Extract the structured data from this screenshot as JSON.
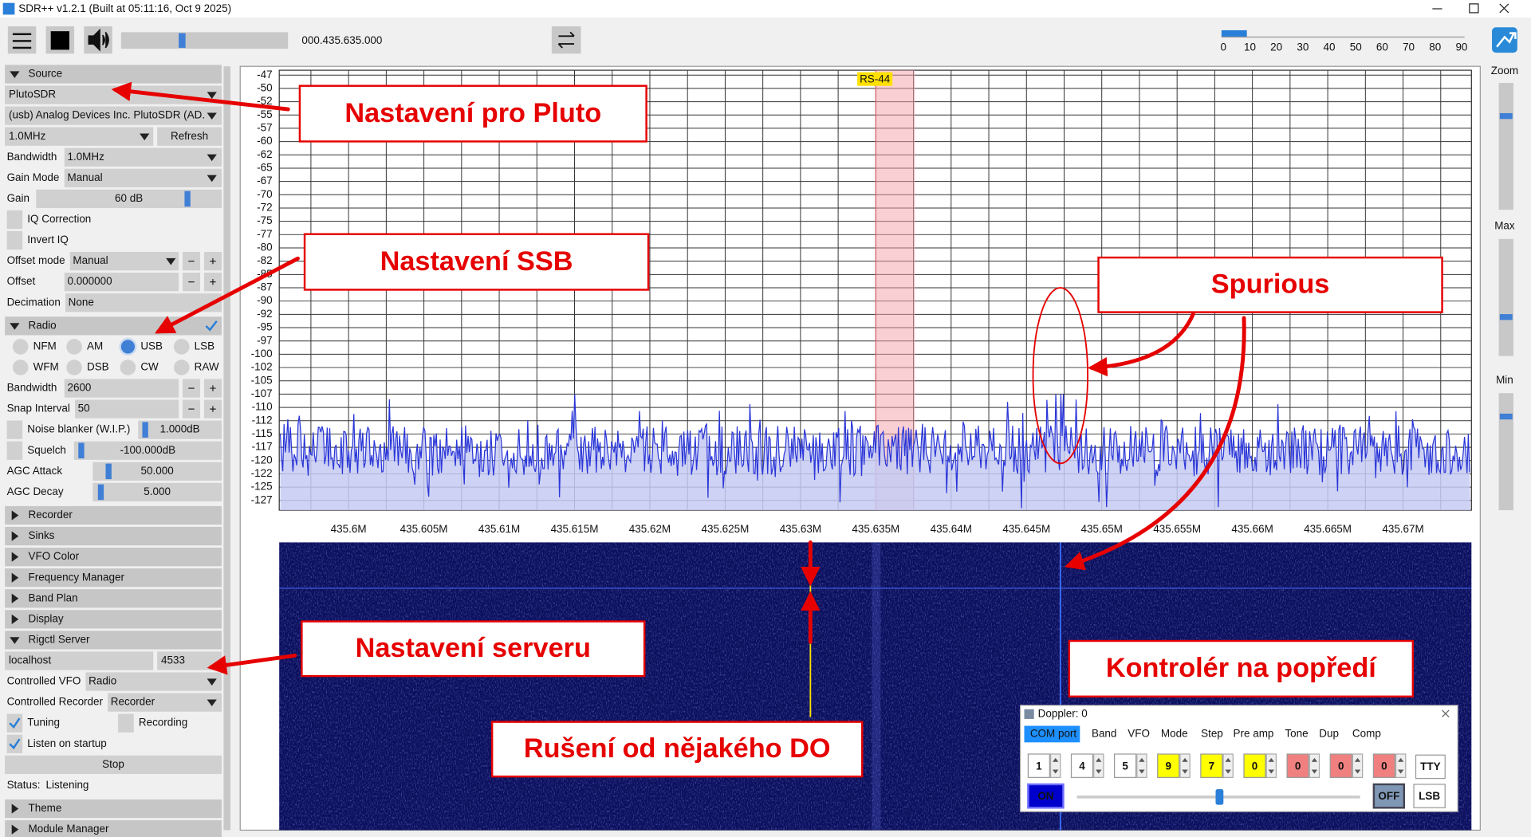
{
  "window": {
    "title": "SDR++ v1.2.1 (Built at 05:11:16, Oct  9 2025)"
  },
  "toolbar": {
    "frequency_prefix": "000.",
    "frequency": "435.635.000",
    "snr_scale": [
      "0",
      "10",
      "20",
      "30",
      "40",
      "50",
      "60",
      "70",
      "80",
      "90"
    ]
  },
  "side_controls": {
    "zoom": "Zoom",
    "max": "Max",
    "min": "Min"
  },
  "sidebar": {
    "rows": [
      {
        "type": "header",
        "label": "Source",
        "open": true
      },
      {
        "type": "combo",
        "value": "PlutoSDR"
      },
      {
        "type": "combo",
        "value": "(usb) Analog Devices Inc. PlutoSDR (AD."
      },
      {
        "type": "combo_button",
        "value": "1.0MHz",
        "button": "Refresh"
      },
      {
        "type": "labeled_combo",
        "label": "Bandwidth",
        "value": "1.0MHz"
      },
      {
        "type": "labeled_combo",
        "label": "Gain Mode",
        "value": "Manual"
      },
      {
        "type": "slider",
        "label": "Gain",
        "value": "60 dB"
      },
      {
        "type": "check",
        "label": "IQ Correction"
      },
      {
        "type": "check",
        "label": "Invert IQ"
      },
      {
        "type": "labeled_combo_pm",
        "label": "Offset mode",
        "value": "Manual"
      },
      {
        "type": "labeled_input_pm",
        "label": "Offset",
        "value": "0.000000"
      },
      {
        "type": "labeled_combo",
        "label": "Decimation",
        "value": "None",
        "disabled": true
      },
      {
        "type": "header",
        "label": "Radio",
        "open": true,
        "checked": true
      },
      {
        "type": "radios",
        "options": [
          "NFM",
          "AM",
          "USB",
          "LSB"
        ],
        "selected": 2
      },
      {
        "type": "radios",
        "options": [
          "WFM",
          "DSB",
          "CW",
          "RAW"
        ]
      },
      {
        "type": "labeled_input_pm",
        "label": "Bandwidth",
        "value": "2600"
      },
      {
        "type": "labeled_input_pm",
        "label": "Snap Interval",
        "value": "50"
      },
      {
        "type": "check_slider",
        "label": "Noise blanker (W.I.P.)",
        "value": "1.000dB"
      },
      {
        "type": "check_slider",
        "label": "Squelch",
        "value": "-100.000dB"
      },
      {
        "type": "slider",
        "label": "AGC Attack",
        "value": "50.000"
      },
      {
        "type": "slider",
        "label": "AGC Decay",
        "value": "5.000"
      },
      {
        "type": "header",
        "label": "Recorder",
        "open": false
      },
      {
        "type": "header",
        "label": "Sinks",
        "open": false
      },
      {
        "type": "header",
        "label": "VFO Color",
        "open": false
      },
      {
        "type": "header",
        "label": "Frequency Manager",
        "open": false
      },
      {
        "type": "header",
        "label": "Band Plan",
        "open": false
      },
      {
        "type": "header",
        "label": "Display",
        "open": false
      },
      {
        "type": "header",
        "label": "Rigctl Server",
        "open": true
      },
      {
        "type": "input_pair",
        "value": "localhost",
        "value2": "4533"
      },
      {
        "type": "labeled_combo",
        "label": "Controlled VFO",
        "value": "Radio"
      },
      {
        "type": "labeled_combo",
        "label": "Controlled Recorder",
        "value": "Recorder"
      },
      {
        "type": "check_pair",
        "label": "Tuning",
        "label2": "Recording",
        "checked": true
      },
      {
        "type": "check",
        "label": "Listen on startup",
        "checked": true
      },
      {
        "type": "button",
        "label": "Stop"
      },
      {
        "type": "status",
        "label": "Status:",
        "value": "Listening"
      },
      {
        "type": "header",
        "label": "Theme",
        "open": false
      },
      {
        "type": "header",
        "label": "Module Manager",
        "open": false
      }
    ]
  },
  "spectrum": {
    "y_ticks": [
      "-47",
      "-50",
      "-52",
      "-55",
      "-57",
      "-60",
      "-62",
      "-65",
      "-67",
      "-70",
      "-72",
      "-75",
      "-77",
      "-80",
      "-82",
      "-85",
      "-87",
      "-90",
      "-92",
      "-95",
      "-97",
      "-100",
      "-102",
      "-105",
      "-107",
      "-110",
      "-112",
      "-115",
      "-117",
      "-120",
      "-122",
      "-125",
      "-127"
    ],
    "x_ticks": [
      "435.6M",
      "435.605M",
      "435.61M",
      "435.615M",
      "435.62M",
      "435.625M",
      "435.63M",
      "435.635M",
      "435.64M",
      "435.645M",
      "435.65M",
      "435.655M",
      "435.66M",
      "435.665M",
      "435.67M"
    ],
    "band_label": "RS-44"
  },
  "annotations": {
    "pluto": "Nastavení pro Pluto",
    "ssb": "Nastavení SSB",
    "spurious": "Spurious",
    "server": "Nastavení serveru",
    "foreground": "Kontrolér na popředí",
    "interference": "Rušení od nějakého DO"
  },
  "doppler": {
    "title": "Doppler: 0",
    "tabs": [
      "COM port",
      "Band",
      "VFO",
      "Mode",
      "Step",
      "Pre amp",
      "Tone",
      "Dup",
      "Comp"
    ],
    "digits": [
      "1",
      "4",
      "5",
      "9",
      "7",
      "0",
      "0",
      "0",
      "0"
    ],
    "buttons": {
      "tty": "TTY",
      "on": "ON",
      "off": "OFF",
      "mode": "LSB"
    }
  }
}
